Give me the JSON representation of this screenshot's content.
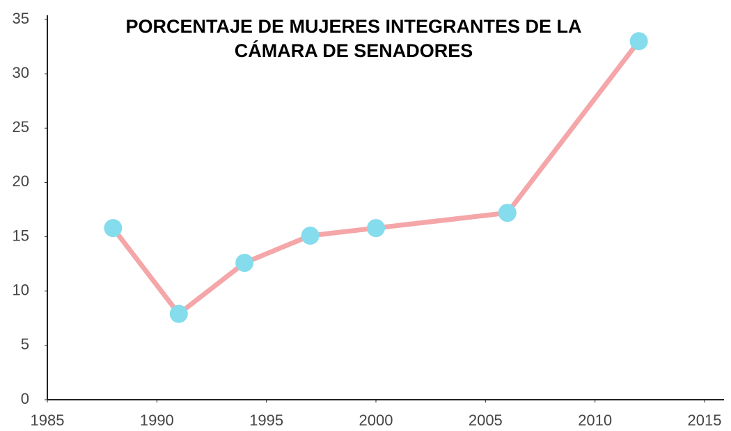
{
  "chart_data": {
    "type": "line",
    "title": [
      "PORCENTAJE DE MUJERES INTEGRANTES DE LA",
      "CÁMARA DE SENADORES"
    ],
    "x": [
      1988,
      1991,
      1994,
      1997,
      2000,
      2006,
      2012
    ],
    "series": [
      {
        "name": null,
        "color": "#f4a6a8",
        "marker_color": "#84dcec",
        "values": [
          15.8,
          7.9,
          12.6,
          15.1,
          15.8,
          17.2,
          33.0
        ]
      }
    ],
    "xlim": [
      1985,
      2015
    ],
    "xticks": [
      1985,
      1990,
      1995,
      2000,
      2005,
      2010,
      2015
    ],
    "ylim": [
      0,
      35
    ],
    "yticks": [
      0,
      5,
      10,
      15,
      20,
      25,
      30,
      35
    ],
    "grid": false
  }
}
